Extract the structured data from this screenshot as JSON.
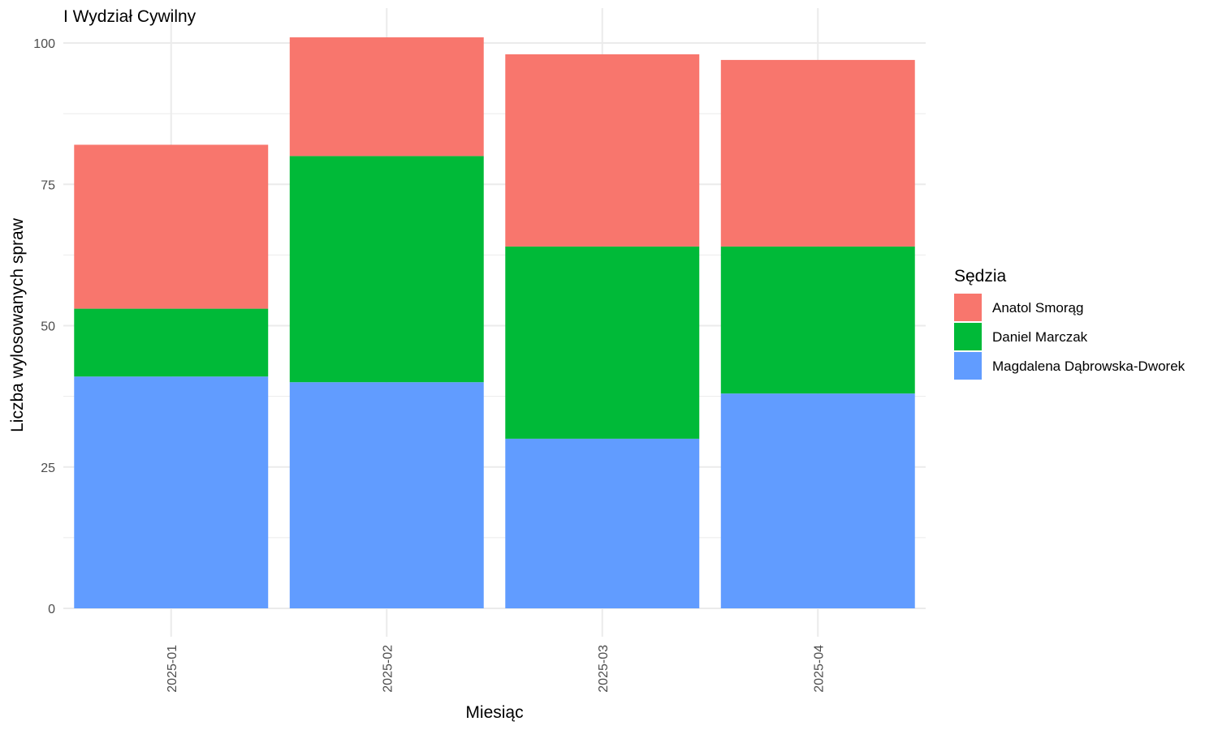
{
  "chart_data": {
    "type": "bar",
    "stacked": true,
    "title": "I Wydział Cywilny",
    "xlabel": "Miesiąc",
    "ylabel": "Liczba wylosowanych spraw",
    "categories": [
      "2025-01",
      "2025-02",
      "2025-03",
      "2025-04"
    ],
    "ylim": [
      0,
      103
    ],
    "yticks": [
      0,
      25,
      50,
      75,
      100
    ],
    "grid": true,
    "legend": {
      "title": "Sędzia",
      "position": "right"
    },
    "series": [
      {
        "name": "Magdalena Dąbrowska-Dworek",
        "color": "#619CFF",
        "values": [
          41,
          40,
          30,
          38
        ]
      },
      {
        "name": "Daniel Marczak",
        "color": "#00BA38",
        "values": [
          12,
          40,
          34,
          26
        ]
      },
      {
        "name": "Anatol Smorąg",
        "color": "#F8766D",
        "values": [
          29,
          21,
          34,
          33
        ]
      }
    ],
    "legend_order": [
      "Anatol Smorąg",
      "Daniel Marczak",
      "Magdalena Dąbrowska-Dworek"
    ]
  }
}
